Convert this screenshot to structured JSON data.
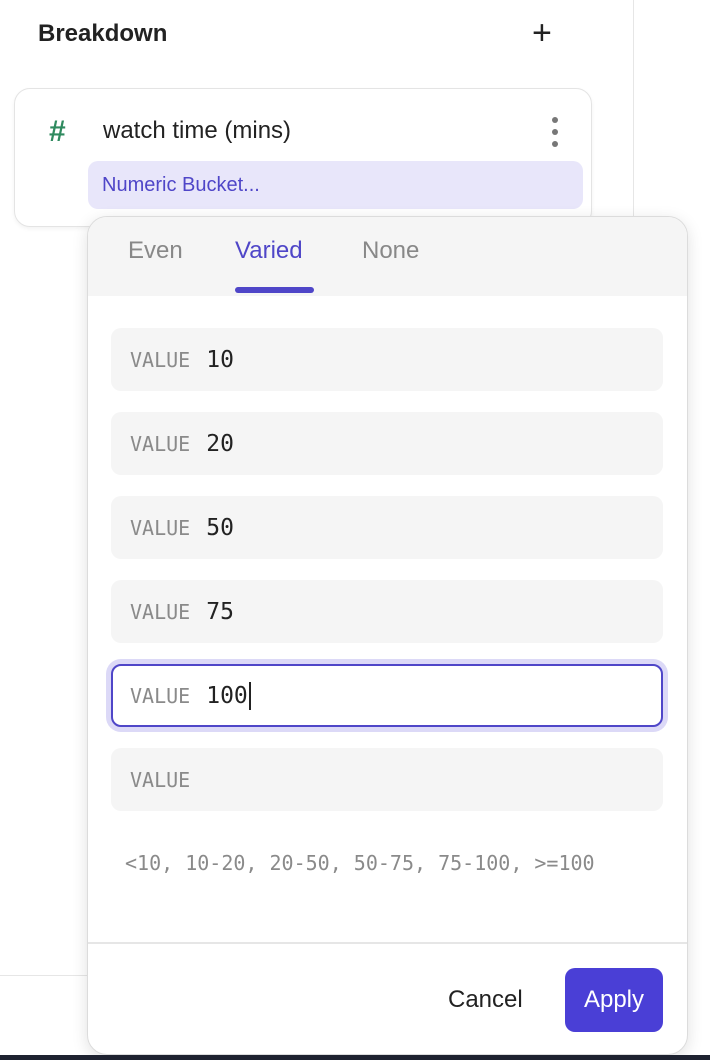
{
  "header": {
    "title": "Breakdown",
    "add_icon": "plus-icon"
  },
  "breakdown_item": {
    "type_icon": "hash-icon",
    "property": "watch time (mins)",
    "menu_icon": "kebab-icon",
    "bucket_label": "Numeric Bucket..."
  },
  "popup": {
    "tabs": [
      {
        "label": "Even"
      },
      {
        "label": "Varied",
        "active": true
      },
      {
        "label": "None"
      }
    ],
    "fields": [
      {
        "label": "VALUE",
        "value": "10"
      },
      {
        "label": "VALUE",
        "value": "20"
      },
      {
        "label": "VALUE",
        "value": "50"
      },
      {
        "label": "VALUE",
        "value": "75"
      },
      {
        "label": "VALUE",
        "value": "100",
        "focused": true
      },
      {
        "label": "VALUE",
        "value": ""
      }
    ],
    "summary": "<10, 10-20, 20-50, 50-75, 75-100, >=100",
    "cancel_label": "Cancel",
    "apply_label": "Apply"
  },
  "colors": {
    "accent": "#4a3fd6",
    "bucket_bg": "#e8e6fa",
    "hash": "#2f8a5f"
  }
}
